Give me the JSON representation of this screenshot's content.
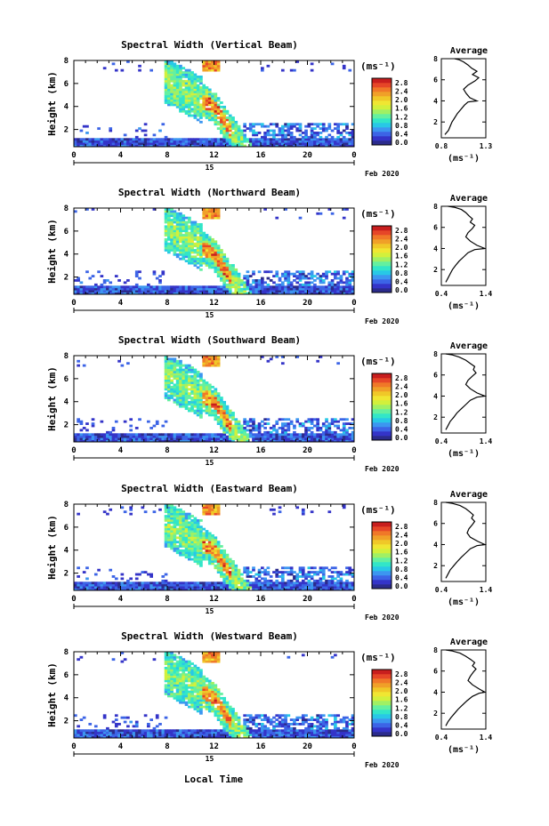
{
  "figure": {
    "xlabel": "Local Time",
    "date_label": "Feb 2020",
    "x_ticks": [
      "0",
      "4",
      "8",
      "12",
      "16",
      "20",
      "0"
    ],
    "date_marker": "15"
  },
  "colorbar": {
    "unit": "(ms⁻¹)",
    "ticks": [
      "2.8",
      "2.4",
      "2.0",
      "1.6",
      "1.2",
      "0.8",
      "0.4",
      "0.0"
    ],
    "colors": [
      "#2b2b8c",
      "#3434c8",
      "#3c64e6",
      "#3c96f0",
      "#28c8e6",
      "#32e6c8",
      "#64f0a0",
      "#a0f064",
      "#d2f03c",
      "#f0e632",
      "#f0c828",
      "#f0a028",
      "#f07828",
      "#e64628",
      "#c81e1e"
    ]
  },
  "average": {
    "title": "Average",
    "unit": "(ms⁻¹)"
  },
  "chart_data": [
    {
      "type": "heatmap",
      "title": "Spectral Width (Vertical Beam)",
      "ylabel": "Height (km)",
      "xlim": [
        0,
        24
      ],
      "ylim": [
        0.5,
        8
      ],
      "y_ticks": [
        "8",
        "6",
        "4",
        "2"
      ],
      "average": {
        "type": "line",
        "xlim": [
          0.8,
          1.3
        ],
        "x_ticks": [
          "0.8",
          "1.3"
        ],
        "ylim": [
          0.5,
          8
        ],
        "y_ticks": [
          "8",
          "6",
          "4",
          "2"
        ],
        "x": [
          0.84,
          0.88,
          0.9,
          0.92,
          0.95,
          0.98,
          1.02,
          1.06,
          1.1,
          1.2,
          1.12,
          1.08,
          1.05,
          1.1,
          1.18,
          1.22,
          1.15,
          1.2,
          1.14,
          1.1,
          1.05,
          1.0,
          0.95
        ],
        "y": [
          0.8,
          1.2,
          1.6,
          2.0,
          2.4,
          2.8,
          3.2,
          3.6,
          3.9,
          4.0,
          4.3,
          4.7,
          5.1,
          5.5,
          5.9,
          6.2,
          6.5,
          6.8,
          7.1,
          7.4,
          7.7,
          7.9,
          8.0
        ]
      }
    },
    {
      "type": "heatmap",
      "title": "Spectral Width (Northward Beam)",
      "ylabel": "Height (km)",
      "xlim": [
        0,
        24
      ],
      "ylim": [
        0.5,
        8
      ],
      "y_ticks": [
        "8",
        "6",
        "4",
        "2"
      ],
      "average": {
        "type": "line",
        "xlim": [
          0.4,
          1.4
        ],
        "x_ticks": [
          "0.4",
          "1.4"
        ],
        "ylim": [
          0.5,
          8
        ],
        "y_ticks": [
          "8",
          "6",
          "4",
          "2"
        ],
        "x": [
          0.5,
          0.55,
          0.6,
          0.65,
          0.72,
          0.8,
          0.9,
          1.0,
          1.15,
          1.38,
          1.2,
          1.05,
          0.95,
          1.0,
          1.1,
          1.15,
          1.05,
          1.1,
          1.02,
          0.95,
          0.85,
          0.7,
          0.55
        ],
        "y": [
          0.8,
          1.2,
          1.6,
          2.0,
          2.4,
          2.8,
          3.2,
          3.6,
          3.9,
          4.0,
          4.3,
          4.7,
          5.1,
          5.5,
          5.9,
          6.2,
          6.5,
          6.8,
          7.1,
          7.4,
          7.7,
          7.9,
          8.0
        ]
      }
    },
    {
      "type": "heatmap",
      "title": "Spectral Width (Southward Beam)",
      "ylabel": "Height (km)",
      "xlim": [
        0,
        24
      ],
      "ylim": [
        0.5,
        8
      ],
      "y_ticks": [
        "8",
        "6",
        "4",
        "2"
      ],
      "average": {
        "type": "line",
        "xlim": [
          0.4,
          1.4
        ],
        "x_ticks": [
          "0.4",
          "1.4"
        ],
        "ylim": [
          0.5,
          8
        ],
        "y_ticks": [
          "8",
          "6",
          "4",
          "2"
        ],
        "x": [
          0.5,
          0.55,
          0.6,
          0.68,
          0.75,
          0.85,
          0.95,
          1.05,
          1.2,
          1.38,
          1.2,
          1.05,
          0.95,
          1.0,
          1.1,
          1.18,
          1.12,
          1.15,
          1.05,
          0.95,
          0.8,
          0.65,
          0.5
        ],
        "y": [
          0.8,
          1.2,
          1.6,
          2.0,
          2.4,
          2.8,
          3.2,
          3.6,
          3.9,
          4.0,
          4.3,
          4.7,
          5.1,
          5.5,
          5.9,
          6.2,
          6.5,
          6.8,
          7.1,
          7.4,
          7.7,
          7.9,
          8.0
        ]
      }
    },
    {
      "type": "heatmap",
      "title": "Spectral Width (Eastward Beam)",
      "ylabel": "Height (km)",
      "xlim": [
        0,
        24
      ],
      "ylim": [
        0.5,
        8
      ],
      "y_ticks": [
        "8",
        "6",
        "4",
        "2"
      ],
      "average": {
        "type": "line",
        "xlim": [
          0.4,
          1.4
        ],
        "x_ticks": [
          "0.4",
          "1.4"
        ],
        "ylim": [
          0.5,
          8
        ],
        "y_ticks": [
          "8",
          "6",
          "4",
          "2"
        ],
        "x": [
          0.5,
          0.55,
          0.6,
          0.68,
          0.76,
          0.85,
          0.95,
          1.05,
          1.2,
          1.38,
          1.22,
          1.05,
          0.98,
          1.02,
          1.1,
          1.15,
          1.08,
          1.12,
          1.04,
          0.95,
          0.82,
          0.65,
          0.5
        ],
        "y": [
          0.8,
          1.2,
          1.6,
          2.0,
          2.4,
          2.8,
          3.2,
          3.6,
          3.9,
          4.0,
          4.3,
          4.7,
          5.1,
          5.5,
          5.9,
          6.2,
          6.5,
          6.8,
          7.1,
          7.4,
          7.7,
          7.9,
          8.0
        ]
      }
    },
    {
      "type": "heatmap",
      "title": "Spectral Width (Westward Beam)",
      "ylabel": "Height (km)",
      "xlim": [
        0,
        24
      ],
      "ylim": [
        0.5,
        8
      ],
      "y_ticks": [
        "8",
        "6",
        "4",
        "2"
      ],
      "average": {
        "type": "line",
        "xlim": [
          0.4,
          1.4
        ],
        "x_ticks": [
          "0.4",
          "1.4"
        ],
        "ylim": [
          0.5,
          8
        ],
        "y_ticks": [
          "8",
          "6",
          "4",
          "2"
        ],
        "x": [
          0.5,
          0.55,
          0.62,
          0.7,
          0.78,
          0.88,
          0.98,
          1.1,
          1.25,
          1.38,
          1.25,
          1.1,
          1.0,
          1.05,
          1.12,
          1.18,
          1.1,
          1.15,
          1.06,
          0.95,
          0.82,
          0.65,
          0.5
        ],
        "y": [
          0.8,
          1.2,
          1.6,
          2.0,
          2.4,
          2.8,
          3.2,
          3.6,
          3.9,
          4.0,
          4.3,
          4.7,
          5.1,
          5.5,
          5.9,
          6.2,
          6.5,
          6.8,
          7.1,
          7.4,
          7.7,
          7.9,
          8.0
        ]
      }
    }
  ]
}
